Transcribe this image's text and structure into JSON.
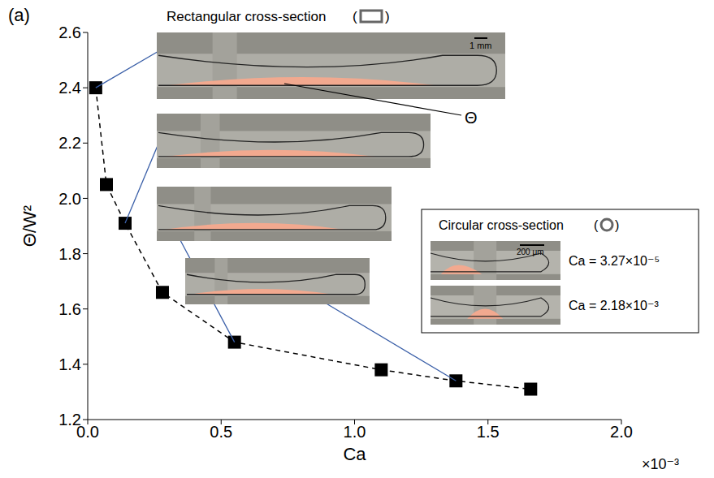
{
  "chart_data": {
    "type": "line",
    "panel_label": "(a)",
    "x_label": "Ca",
    "y_label": "Θ/W²",
    "x_multiplier": "×10⁻³",
    "x": [
      0.03,
      0.07,
      0.14,
      0.28,
      0.55,
      1.1,
      1.38,
      1.66
    ],
    "values": [
      2.4,
      2.05,
      1.91,
      1.66,
      1.48,
      1.38,
      1.34,
      1.31
    ],
    "color": "#000000",
    "marker": "square",
    "line_style": "dashed",
    "grid": false,
    "xlim": [
      0,
      2
    ],
    "xticks": [
      {
        "value": 0,
        "label": "0.0"
      },
      0.5,
      {
        "value": 1,
        "label": "1.0"
      },
      1.5,
      {
        "value": 2,
        "label": "2.0"
      }
    ],
    "ylim": [
      1.2,
      2.6
    ],
    "yticks": [
      1.2,
      1.4,
      1.6,
      1.8,
      {
        "value": 2,
        "label": "2.0"
      },
      2.2,
      2.4,
      2.6
    ],
    "insets": {
      "rectangular": {
        "title": "Rectangular cross-section",
        "brackets": [
          "(",
          ")"
        ],
        "scale_bar": "1 mm",
        "angle_label": "Θ"
      },
      "circular": {
        "title": "Circular cross-section",
        "brackets": [
          "(",
          ")"
        ],
        "scale_bar": "200 μm",
        "captions": [
          "Ca = 3.27×10⁻⁵",
          "Ca = 2.18×10⁻³"
        ]
      }
    }
  }
}
